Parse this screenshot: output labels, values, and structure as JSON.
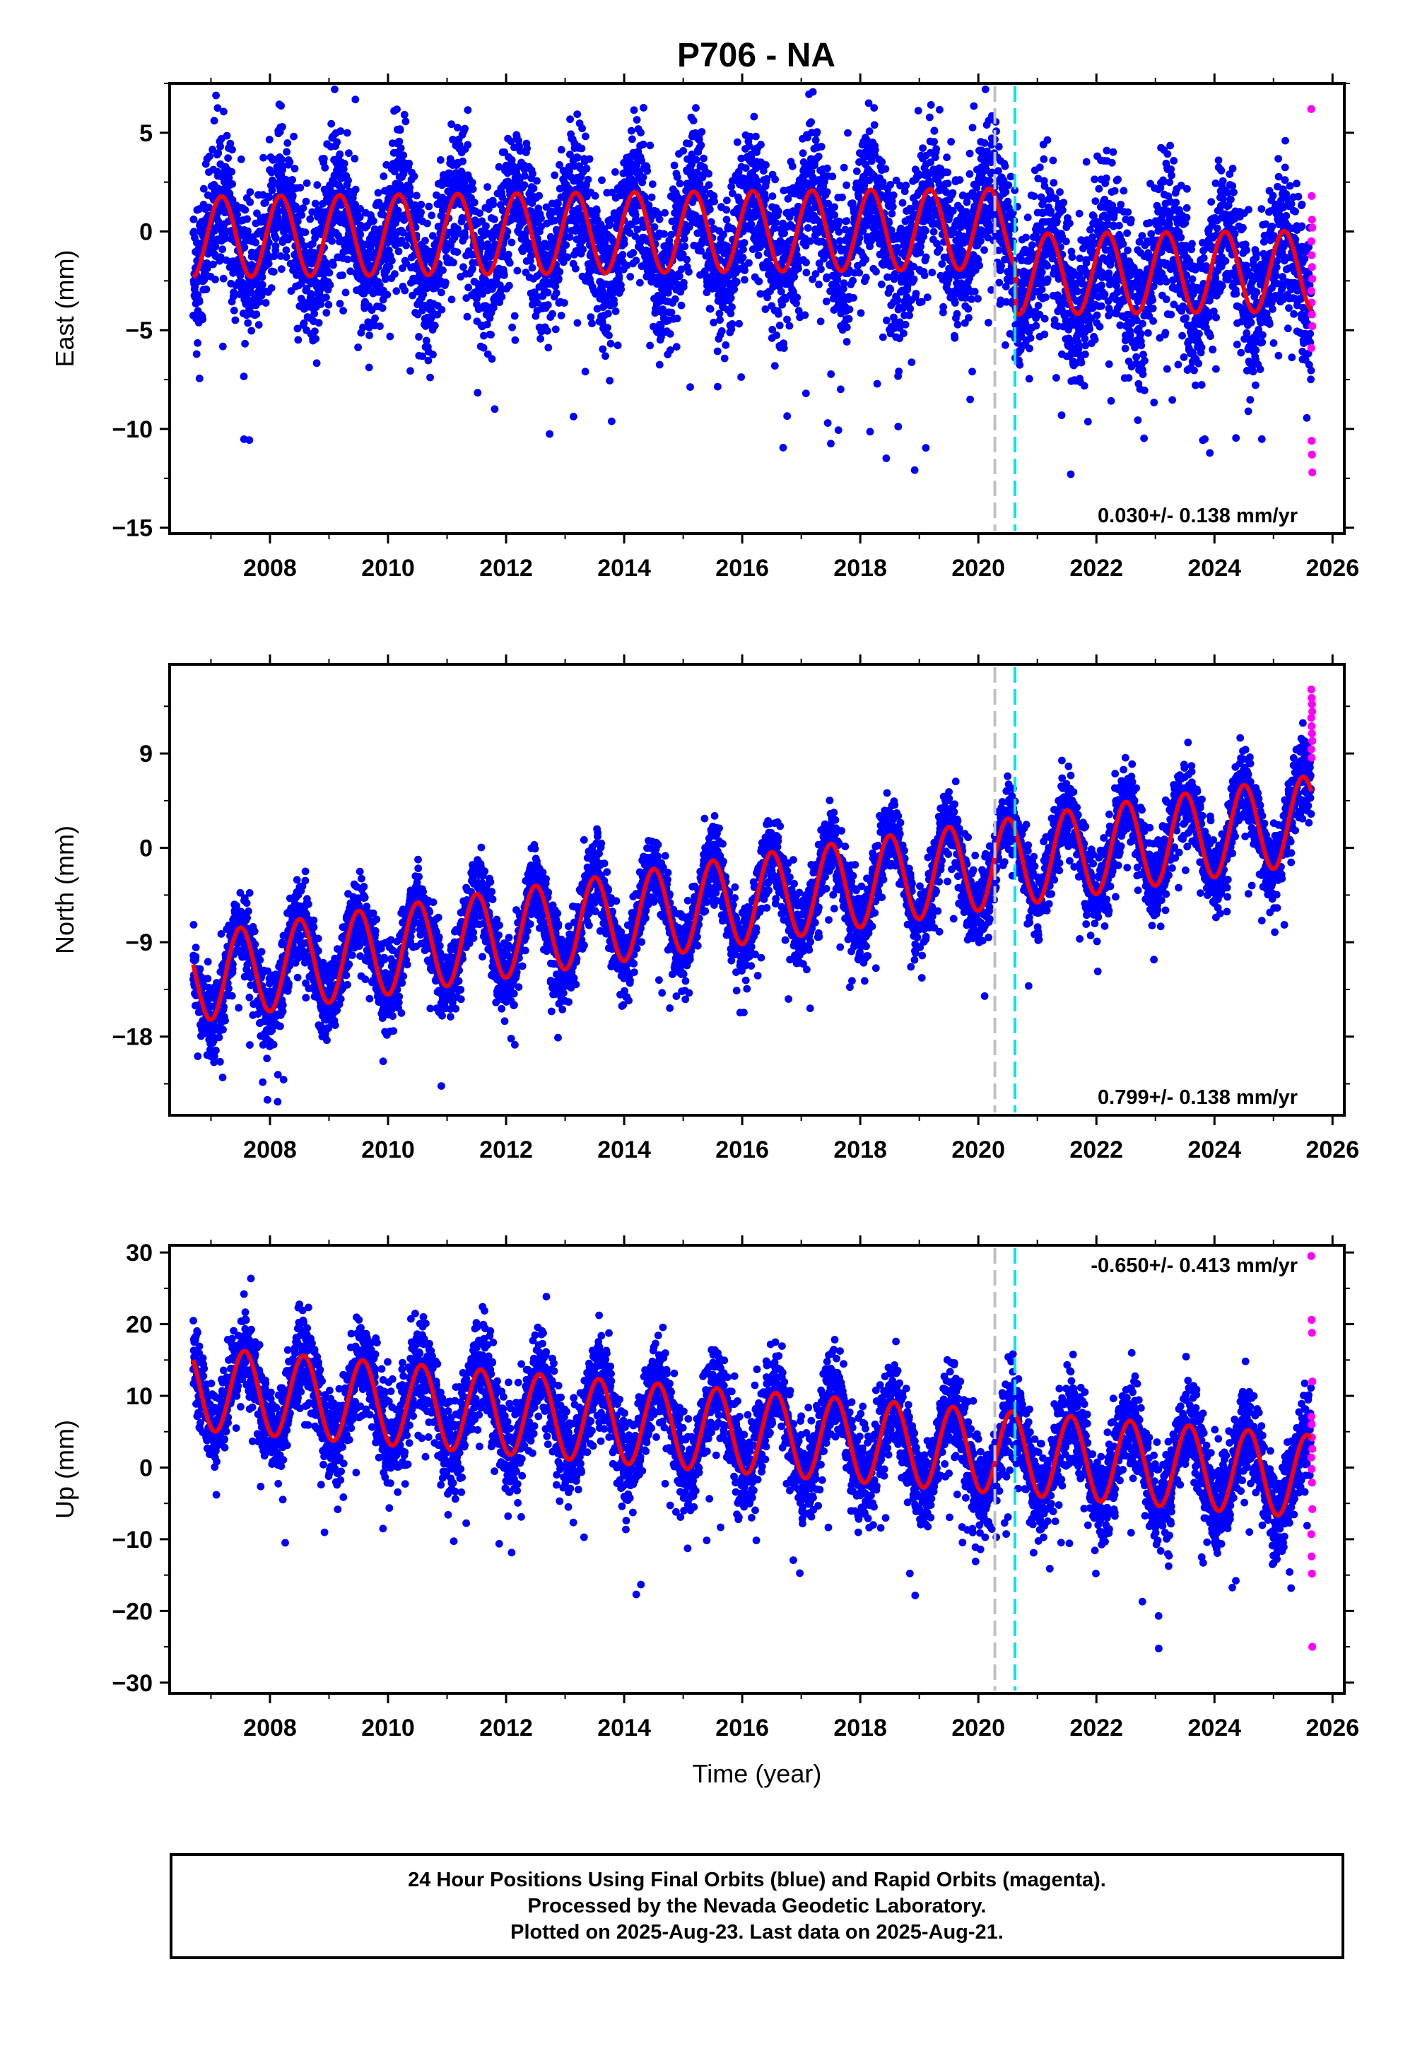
{
  "chart_data": {
    "type": "scatter",
    "title": "P706 - NA",
    "xlabel": "Time (year)",
    "colors": {
      "final": "#0000ff",
      "rapid": "#ff00ff",
      "model": "#ff0000",
      "break_gray": "#c0c0c0",
      "break_cyan": "#00e5ee"
    },
    "xlim": [
      2006.3,
      2026.2
    ],
    "x_ticks": [
      2008,
      2010,
      2012,
      2014,
      2016,
      2018,
      2020,
      2022,
      2024,
      2026
    ],
    "breaks": [
      2020.28,
      2020.62
    ],
    "data_start": 2006.7,
    "data_end": 2025.64,
    "rapid_start": 2025.64,
    "panels": [
      {
        "name": "east",
        "ylabel": "East (mm)",
        "ylim": [
          -15.3,
          7.5
        ],
        "y_ticks": [
          5,
          0,
          -5,
          -10,
          -15
        ],
        "rate_text": "0.030+/- 0.138 mm/yr",
        "rate_position": "bottom-right",
        "model": {
          "offset_pre": 0.0,
          "offset_post": -2.3,
          "amplitude": 2.05,
          "phase": 0.93,
          "trend": 0.03,
          "noise_sd": 1.9
        },
        "rapid_values": [
          6.2,
          1.8,
          0.6,
          0.2,
          -0.5,
          -1.2,
          -1.8,
          -2.4,
          -3.0,
          -3.6,
          -4.2,
          -4.8,
          -5.9,
          -10.6,
          -11.3,
          -12.2
        ]
      },
      {
        "name": "north",
        "ylabel": "North (mm)",
        "ylim": [
          -25.5,
          17.5
        ],
        "y_ticks": [
          9,
          0,
          -9,
          -18
        ],
        "rate_text": "0.799+/- 0.138 mm/yr",
        "rate_position": "bottom-right",
        "model": {
          "offset_pre": -5.0,
          "offset_post": -5.0,
          "amplitude": 4.2,
          "phase": 0.25,
          "trend": 0.799,
          "noise_sd": 1.8
        },
        "rapid_values": [
          15.1,
          14.3,
          13.7,
          13.0,
          12.4,
          11.6,
          10.9,
          10.2,
          9.4,
          8.6
        ]
      },
      {
        "name": "up",
        "ylabel": "Up (mm)",
        "ylim": [
          -31.5,
          31.0
        ],
        "y_ticks": [
          30,
          20,
          10,
          0,
          -10,
          -20,
          -30
        ],
        "rate_text": "-0.650+/- 0.413 mm/yr",
        "rate_position": "top-right",
        "model": {
          "offset_pre": 5.0,
          "offset_post": 5.0,
          "amplitude": 5.8,
          "phase": 0.32,
          "trend": -0.65,
          "noise_sd": 3.2
        },
        "rapid_values": [
          29.5,
          20.6,
          18.8,
          12.0,
          7.1,
          6.0,
          4.2,
          2.6,
          1.4,
          -0.2,
          -2.1,
          -5.8,
          -9.3,
          -12.4,
          -14.8,
          -25.0
        ]
      }
    ]
  },
  "footer": {
    "line1": "24 Hour Positions Using Final Orbits (blue) and Rapid Orbits (magenta).",
    "line2": "Processed by the Nevada Geodetic Laboratory.",
    "line3": "Plotted on 2025-Aug-23. Last data on 2025-Aug-21."
  }
}
